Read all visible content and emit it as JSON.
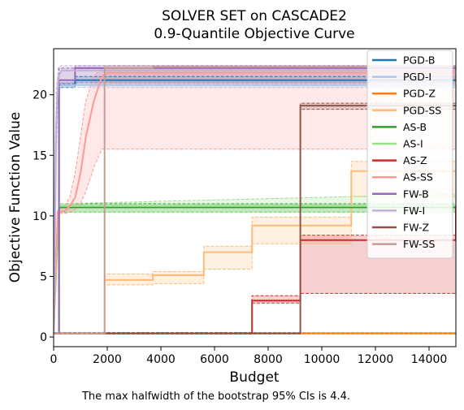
{
  "chart_data": {
    "type": "line",
    "title": "SOLVER SET on CASCADE2",
    "subtitle": "0.9-Quantile Objective Curve",
    "xlabel": "Budget",
    "ylabel": "Objective Function Value",
    "xlim": [
      0,
      15000
    ],
    "ylim": [
      -0.8,
      23.8
    ],
    "xticks": [
      0,
      2000,
      4000,
      6000,
      8000,
      10000,
      12000,
      14000
    ],
    "yticks": [
      0,
      5,
      10,
      15,
      20
    ],
    "legend_position": "top-right",
    "footnote": "The max halfwidth of the bootstrap 95% CIs is 4.4.",
    "series": [
      {
        "name": "PGD-B",
        "color": "#1f77b4",
        "step": true,
        "x": [
          0,
          200,
          800,
          15000
        ],
        "y": [
          0.3,
          20.8,
          21.2,
          21.2
        ],
        "ci_lo": [
          0.3,
          20.6,
          20.8,
          20.8
        ],
        "ci_hi": [
          0.3,
          21.0,
          21.5,
          21.5
        ]
      },
      {
        "name": "PGD-I",
        "color": "#aec7e8",
        "step": false,
        "x": [
          0,
          60,
          120,
          200,
          300,
          15000
        ],
        "y": [
          0.3,
          15.0,
          19.0,
          20.7,
          20.8,
          20.8
        ],
        "ci_lo": [
          0.3,
          13.5,
          18.0,
          20.4,
          20.6,
          20.6
        ],
        "ci_hi": [
          0.3,
          16.5,
          20.2,
          21.0,
          21.0,
          21.0
        ]
      },
      {
        "name": "PGD-Z",
        "color": "#ff7f0e",
        "step": true,
        "x": [
          0,
          15000
        ],
        "y": [
          0.3,
          0.3
        ],
        "ci_lo": [
          0.25,
          0.25
        ],
        "ci_hi": [
          0.35,
          0.35
        ]
      },
      {
        "name": "PGD-SS",
        "color": "#ffbb78",
        "step": true,
        "x": [
          0,
          1900,
          3700,
          5600,
          7400,
          9200,
          11100,
          15000
        ],
        "y": [
          0.3,
          4.7,
          5.1,
          7.0,
          9.2,
          9.2,
          13.7,
          13.7
        ],
        "ci_lo": [
          0.25,
          4.3,
          4.4,
          5.6,
          7.7,
          7.7,
          11.6,
          13.2
        ],
        "ci_hi": [
          0.35,
          5.2,
          5.4,
          7.5,
          9.9,
          9.9,
          14.5,
          14.5
        ]
      },
      {
        "name": "AS-B",
        "color": "#2ca02c",
        "step": true,
        "x": [
          0,
          200,
          15000
        ],
        "y": [
          0.3,
          10.7,
          10.8
        ],
        "ci_lo": [
          0.3,
          10.3,
          10.3
        ],
        "ci_hi": [
          0.3,
          11.0,
          11.8
        ]
      },
      {
        "name": "AS-I",
        "color": "#98df8a",
        "step": false,
        "x": [
          0,
          200,
          15000
        ],
        "y": [
          0.3,
          10.8,
          10.8
        ],
        "ci_lo": [
          0.3,
          10.3,
          10.3
        ],
        "ci_hi": [
          0.3,
          11.0,
          11.8
        ]
      },
      {
        "name": "AS-Z",
        "color": "#d62728",
        "step": true,
        "x": [
          0,
          7400,
          9200,
          15000
        ],
        "y": [
          0.3,
          3.0,
          8.0,
          10.8
        ],
        "ci_lo": [
          0.25,
          2.8,
          3.6,
          10.5
        ],
        "ci_hi": [
          0.35,
          3.4,
          8.4,
          12.0
        ]
      },
      {
        "name": "AS-SS",
        "color": "#ff9896",
        "step": false,
        "x": [
          0,
          150,
          400,
          600,
          800,
          1000,
          1200,
          1500,
          1800,
          2000,
          15000
        ],
        "y": [
          0.3,
          10.3,
          10.4,
          10.8,
          11.5,
          13.5,
          16.5,
          19.5,
          21.5,
          21.8,
          21.8
        ],
        "ci_lo": [
          0.3,
          10.2,
          10.2,
          10.3,
          10.5,
          11.0,
          12.0,
          14.0,
          15.5,
          15.5,
          15.5
        ],
        "ci_hi": [
          0.3,
          10.5,
          10.8,
          11.5,
          13.5,
          16.5,
          19.5,
          21.5,
          22.2,
          22.2,
          22.2
        ]
      },
      {
        "name": "FW-B",
        "color": "#9467bd",
        "step": true,
        "x": [
          0,
          200,
          800,
          15000
        ],
        "y": [
          0.3,
          21.2,
          22.2,
          22.2
        ],
        "ci_lo": [
          0.3,
          20.9,
          21.0,
          21.0
        ],
        "ci_hi": [
          0.3,
          22.2,
          22.4,
          22.4
        ]
      },
      {
        "name": "FW-I",
        "color": "#c5b0d5",
        "step": false,
        "x": [
          0,
          50,
          100,
          180,
          300,
          15000
        ],
        "y": [
          0.3,
          8.0,
          18.0,
          21.5,
          22.0,
          22.0
        ],
        "ci_lo": [
          0.3,
          6.0,
          15.0,
          20.8,
          21.0,
          21.0
        ],
        "ci_hi": [
          0.3,
          10.0,
          20.5,
          22.3,
          22.4,
          22.4
        ]
      },
      {
        "name": "FW-Z",
        "color": "#8c564b",
        "step": true,
        "x": [
          0,
          9200,
          15000
        ],
        "y": [
          0.3,
          19.1,
          19.1
        ],
        "ci_lo": [
          0.25,
          18.8,
          18.8
        ],
        "ci_hi": [
          0.35,
          19.3,
          19.3
        ]
      },
      {
        "name": "FW-SS",
        "color": "#c49c94",
        "step": true,
        "x": [
          0,
          1900,
          3700,
          15000
        ],
        "y": [
          0.3,
          22.2,
          22.3,
          22.3
        ],
        "ci_lo": [
          0.25,
          21.0,
          21.0,
          21.0
        ],
        "ci_hi": [
          0.35,
          22.4,
          22.4,
          22.4
        ]
      }
    ]
  }
}
